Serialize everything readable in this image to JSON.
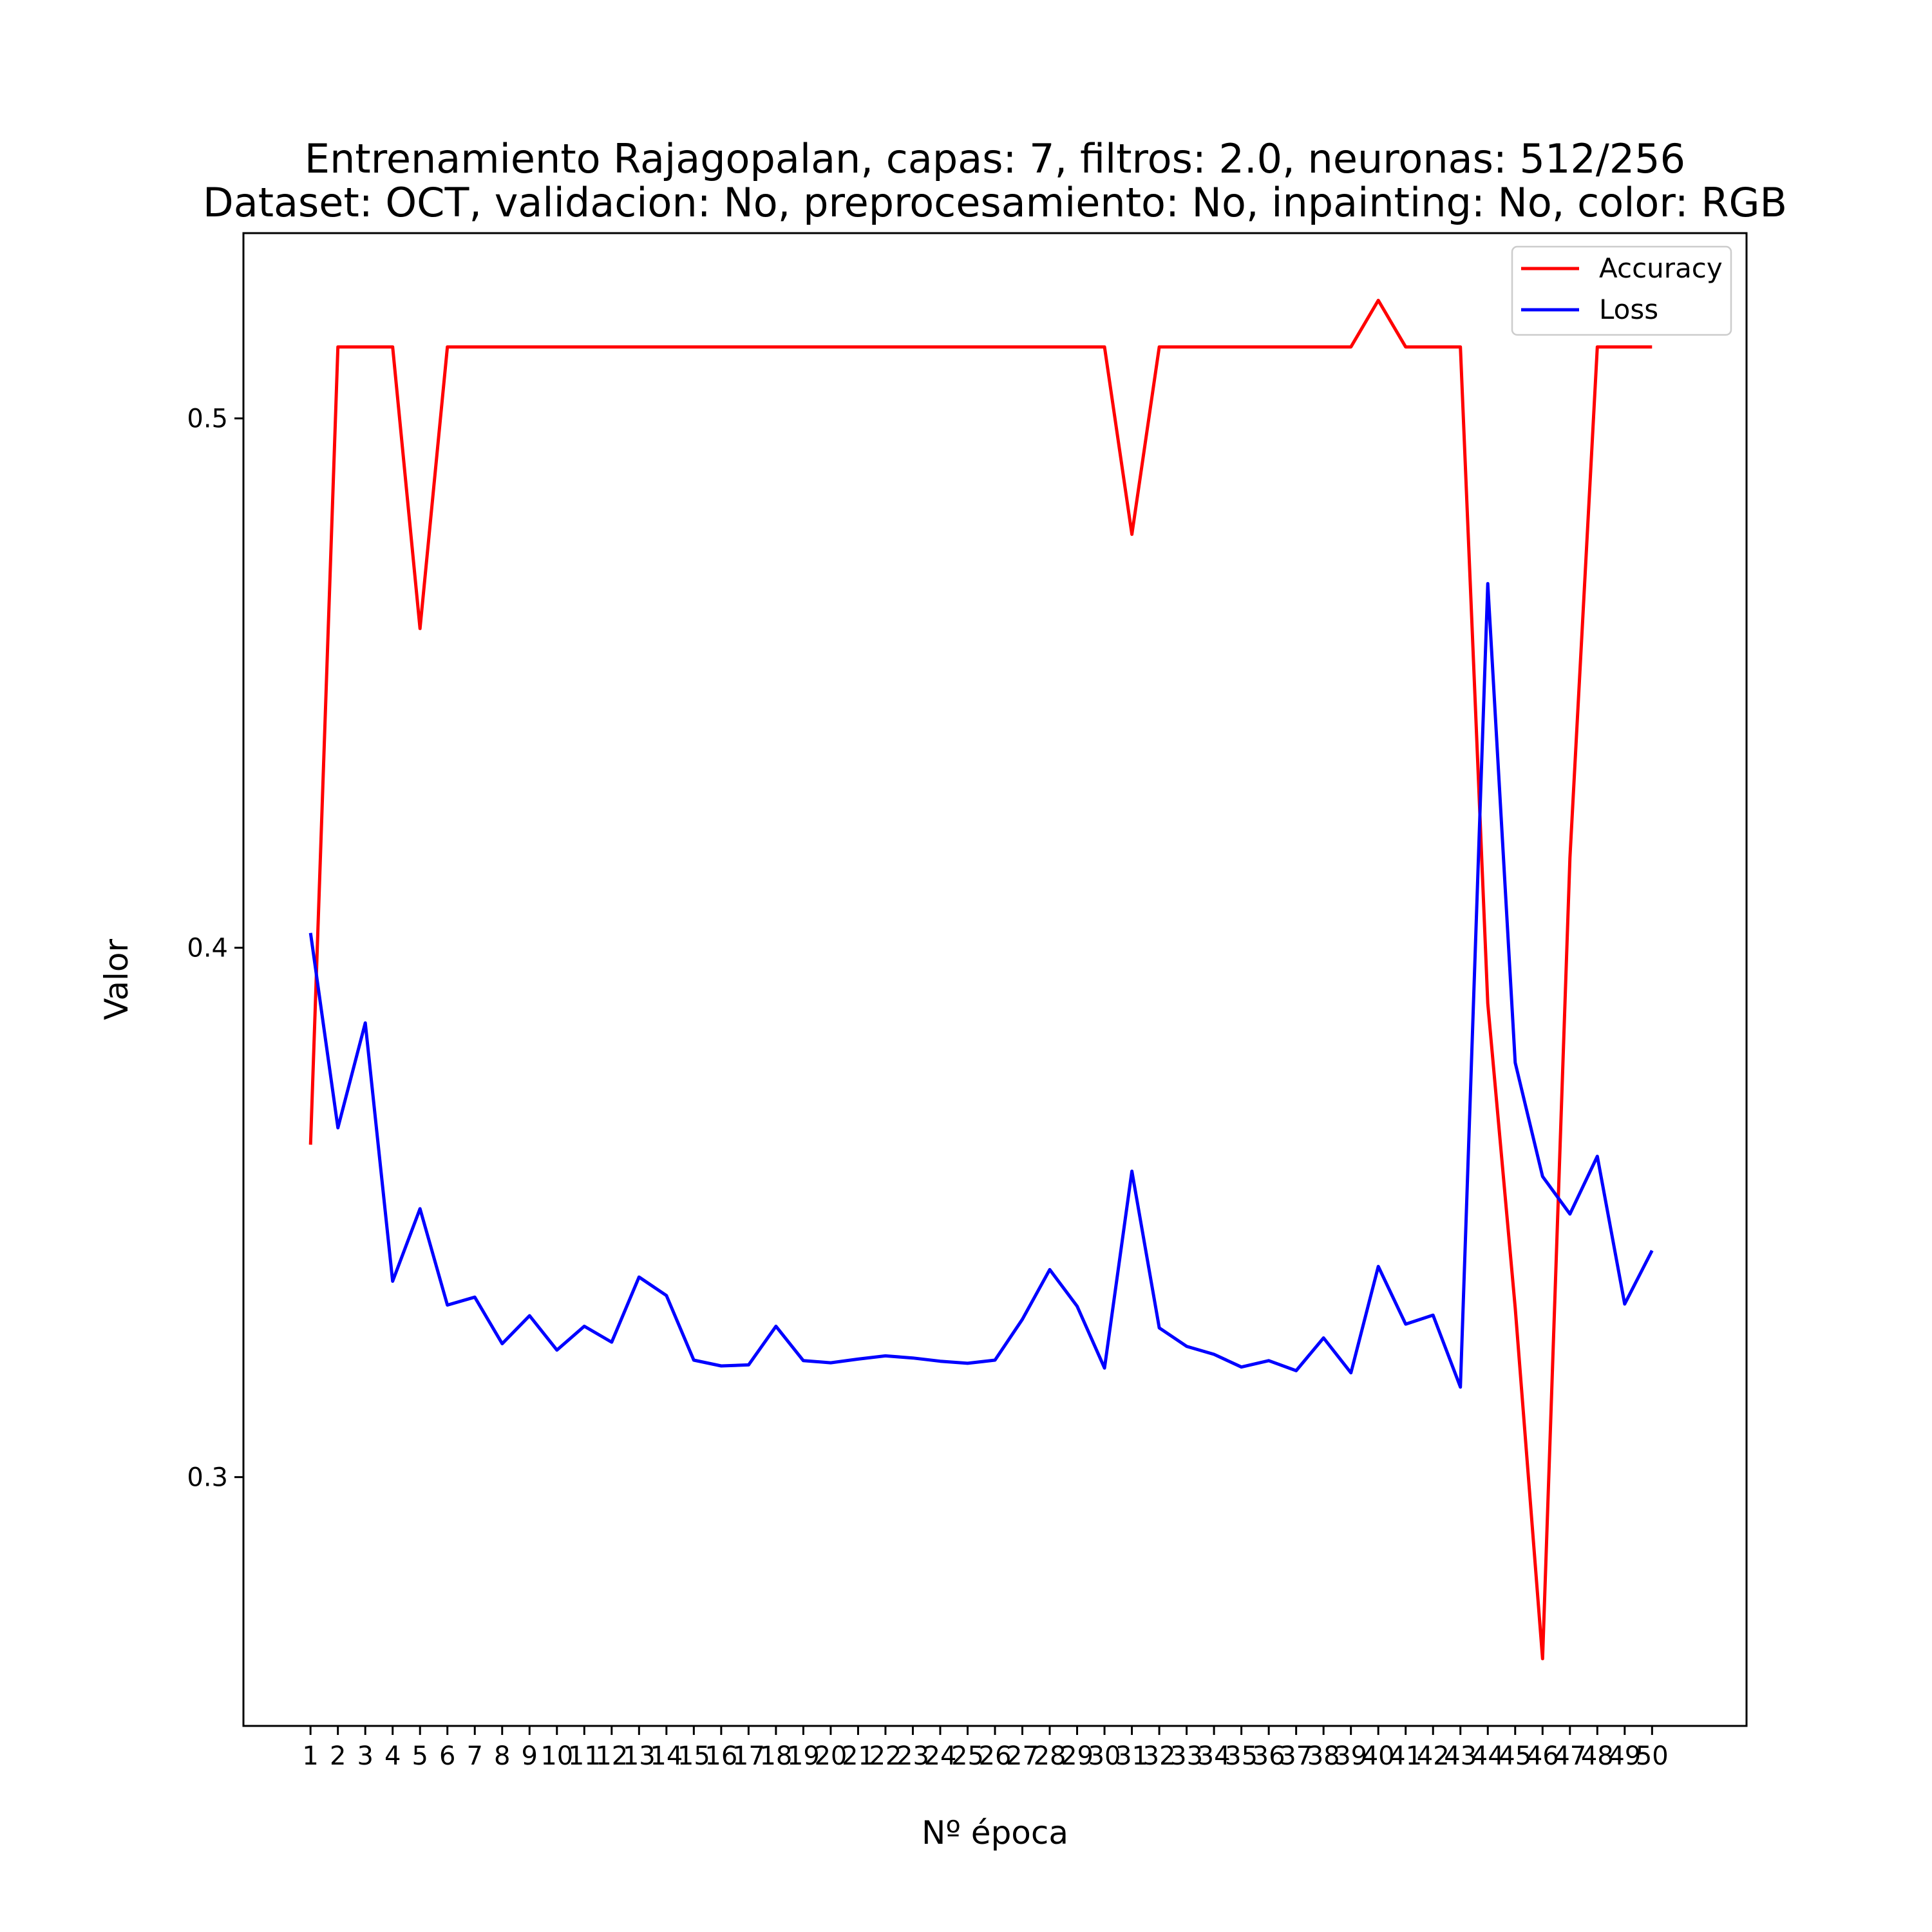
{
  "chart_data": {
    "type": "line",
    "title_lines": [
      "Entrenamiento Rajagopalan, capas: 7, filtros: 2.0, neuronas: 512/256",
      "Dataset: OCT, validacion: No, preprocesamiento: No, inpainting: No, color: RGB"
    ],
    "xlabel": "Nº época",
    "ylabel": "Valor",
    "x": [
      1,
      2,
      3,
      4,
      5,
      6,
      7,
      8,
      9,
      10,
      11,
      12,
      13,
      14,
      15,
      16,
      17,
      18,
      19,
      20,
      21,
      22,
      23,
      24,
      25,
      26,
      27,
      28,
      29,
      30,
      31,
      32,
      33,
      34,
      35,
      36,
      37,
      38,
      39,
      40,
      41,
      42,
      43,
      44,
      45,
      46,
      47,
      48,
      49,
      50
    ],
    "x_ticks": [
      "1",
      "2",
      "3",
      "4",
      "5",
      "6",
      "7",
      "8",
      "9",
      "10",
      "11",
      "12",
      "13",
      "14",
      "15",
      "16",
      "17",
      "18",
      "19",
      "20",
      "21",
      "22",
      "23",
      "24",
      "25",
      "26",
      "27",
      "28",
      "29",
      "30",
      "31",
      "32",
      "33",
      "34",
      "35",
      "36",
      "37",
      "38",
      "39",
      "40",
      "41",
      "42",
      "43",
      "44",
      "45",
      "46",
      "47",
      "48",
      "49",
      "50"
    ],
    "xlim": [
      -1.45,
      53.45
    ],
    "y_ticks": [
      0.3,
      0.4,
      0.5
    ],
    "y_tick_labels": [
      "0.3",
      "0.4",
      "0.5"
    ],
    "ylim": [
      0.253,
      0.535
    ],
    "grid": false,
    "legend_position": "top-right",
    "series": [
      {
        "name": "Accuracy",
        "color": "#ff0000",
        "values": [
          0.3628,
          0.5135,
          0.5135,
          0.5135,
          0.4603,
          0.5135,
          0.5135,
          0.5135,
          0.5135,
          0.5135,
          0.5135,
          0.5135,
          0.5135,
          0.5135,
          0.5135,
          0.5135,
          0.5135,
          0.5135,
          0.5135,
          0.5135,
          0.5135,
          0.5135,
          0.5135,
          0.5135,
          0.5135,
          0.5135,
          0.5135,
          0.5135,
          0.5135,
          0.5135,
          0.4781,
          0.5135,
          0.5135,
          0.5135,
          0.5135,
          0.5135,
          0.5135,
          0.5135,
          0.5135,
          0.5223,
          0.5135,
          0.5135,
          0.5135,
          0.3895,
          0.332,
          0.2657,
          0.417,
          0.5135,
          0.5135,
          0.5135
        ]
      },
      {
        "name": "Loss",
        "color": "#0000ff",
        "values": [
          0.4028,
          0.366,
          0.3858,
          0.337,
          0.3507,
          0.3325,
          0.334,
          0.3252,
          0.3305,
          0.324,
          0.3285,
          0.3255,
          0.3378,
          0.3343,
          0.3221,
          0.321,
          0.3212,
          0.3285,
          0.322,
          0.3216,
          0.3223,
          0.3229,
          0.3225,
          0.3219,
          0.3215,
          0.3221,
          0.3298,
          0.3392,
          0.3323,
          0.3206,
          0.3578,
          0.3282,
          0.3247,
          0.3232,
          0.3208,
          0.322,
          0.3201,
          0.3263,
          0.3197,
          0.3398,
          0.3289,
          0.3306,
          0.317,
          0.4688,
          0.3783,
          0.3568,
          0.3497,
          0.3606,
          0.3327,
          0.3428
        ]
      }
    ]
  }
}
